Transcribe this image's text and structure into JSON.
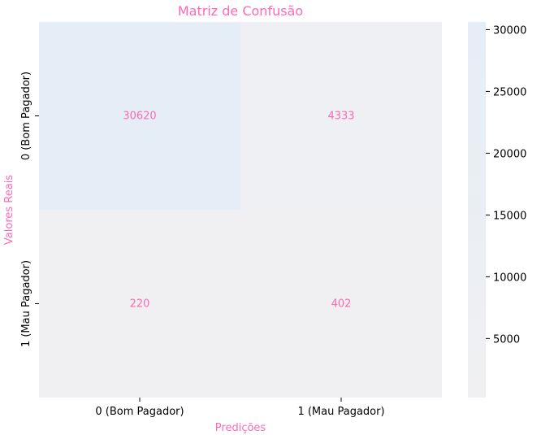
{
  "chart_data": {
    "type": "heatmap",
    "title": "Matriz de Confusão",
    "xlabel": "Predições",
    "ylabel": "Valores Reais",
    "x_categories": [
      "0 (Bom Pagador)",
      "1 (Mau Pagador)"
    ],
    "y_categories": [
      "0 (Bom Pagador)",
      "1 (Mau Pagador)"
    ],
    "values": [
      [
        30620,
        4333
      ],
      [
        220,
        402
      ]
    ],
    "colorbar": {
      "ticks": [
        5000,
        10000,
        15000,
        20000,
        25000,
        30000
      ],
      "range": [
        220,
        30620
      ]
    },
    "colors": {
      "low": "#f0f0f2",
      "high": "#e5edf7",
      "annotation": "#ff69b4",
      "title": "#ff69b4",
      "axis_label": "#ff69b4",
      "tick_text": "#000000"
    }
  }
}
